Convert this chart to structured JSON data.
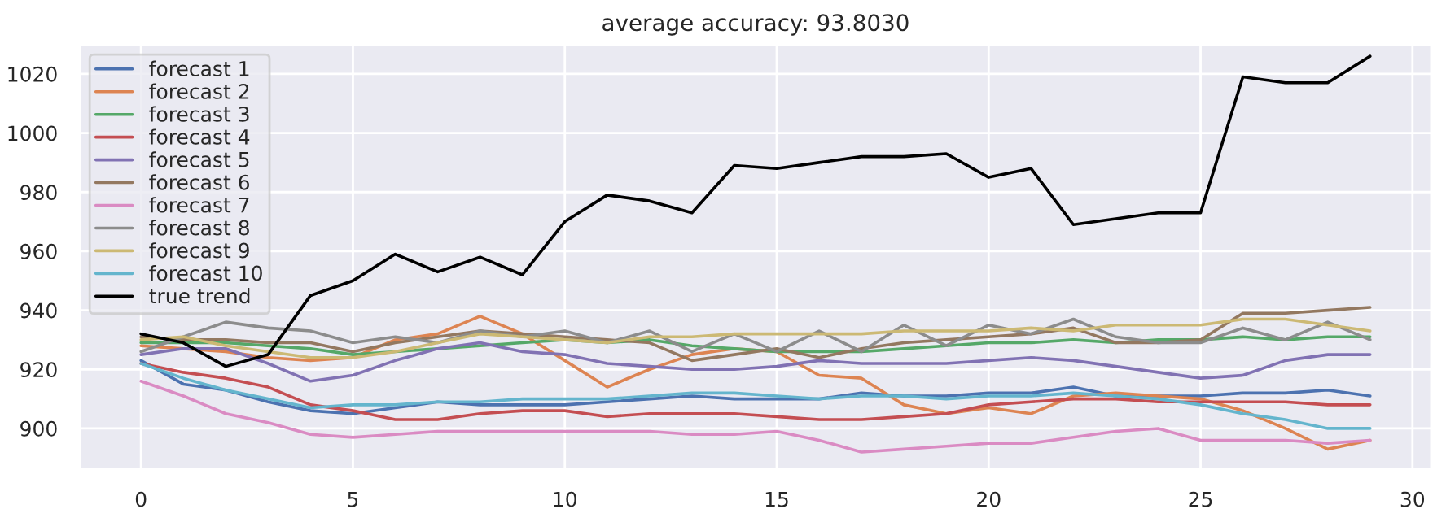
{
  "chart_data": {
    "type": "line",
    "title": "average accuracy: 93.8030",
    "x": [
      0,
      1,
      2,
      3,
      4,
      5,
      6,
      7,
      8,
      9,
      10,
      11,
      12,
      13,
      14,
      15,
      16,
      17,
      18,
      19,
      20,
      21,
      22,
      23,
      24,
      25,
      26,
      27,
      28,
      29
    ],
    "series": [
      {
        "name": "forecast 1",
        "color": "#4c72b0",
        "values": [
          923,
          915,
          913,
          909,
          906,
          905,
          907,
          909,
          908,
          908,
          908,
          909,
          910,
          911,
          910,
          910,
          910,
          912,
          911,
          911,
          912,
          912,
          914,
          911,
          911,
          911,
          912,
          912,
          913,
          911
        ]
      },
      {
        "name": "forecast 2",
        "color": "#dd8452",
        "values": [
          928,
          927,
          926,
          924,
          923,
          924,
          930,
          932,
          938,
          932,
          923,
          914,
          920,
          925,
          927,
          926,
          918,
          917,
          908,
          905,
          907,
          905,
          911,
          912,
          911,
          910,
          906,
          900,
          893,
          896
        ]
      },
      {
        "name": "forecast 3",
        "color": "#55a868",
        "values": [
          929,
          929,
          929,
          928,
          927,
          925,
          926,
          927,
          928,
          929,
          930,
          929,
          930,
          928,
          927,
          926,
          926,
          926,
          927,
          928,
          929,
          929,
          930,
          929,
          930,
          930,
          931,
          930,
          931,
          931
        ]
      },
      {
        "name": "forecast 4",
        "color": "#c44e52",
        "values": [
          922,
          919,
          917,
          914,
          908,
          906,
          903,
          903,
          905,
          906,
          906,
          904,
          905,
          905,
          905,
          904,
          903,
          903,
          904,
          905,
          908,
          909,
          910,
          910,
          909,
          909,
          909,
          909,
          908,
          908
        ]
      },
      {
        "name": "forecast 5",
        "color": "#8172b3",
        "values": [
          925,
          927,
          927,
          922,
          916,
          918,
          923,
          927,
          929,
          926,
          925,
          922,
          921,
          920,
          920,
          921,
          923,
          922,
          922,
          922,
          923,
          924,
          923,
          921,
          919,
          917,
          918,
          923,
          925,
          925
        ]
      },
      {
        "name": "forecast 6",
        "color": "#937860",
        "values": [
          931,
          930,
          930,
          929,
          929,
          926,
          929,
          931,
          933,
          932,
          931,
          930,
          929,
          923,
          925,
          927,
          924,
          927,
          929,
          930,
          931,
          932,
          934,
          929,
          929,
          930,
          939,
          939,
          940,
          941
        ]
      },
      {
        "name": "forecast 7",
        "color": "#da8bc3",
        "values": [
          916,
          911,
          905,
          902,
          898,
          897,
          898,
          899,
          899,
          899,
          899,
          899,
          899,
          898,
          898,
          899,
          896,
          892,
          893,
          894,
          895,
          895,
          897,
          899,
          900,
          896,
          896,
          896,
          895,
          896
        ]
      },
      {
        "name": "forecast 8",
        "color": "#8c8c8c",
        "values": [
          926,
          931,
          936,
          934,
          933,
          929,
          931,
          929,
          933,
          931,
          933,
          929,
          933,
          926,
          932,
          926,
          933,
          926,
          935,
          928,
          935,
          932,
          937,
          931,
          929,
          929,
          934,
          930,
          936,
          930
        ]
      },
      {
        "name": "forecast 9",
        "color": "#ccb974",
        "values": [
          930,
          931,
          928,
          926,
          924,
          924,
          926,
          929,
          932,
          931,
          930,
          929,
          931,
          931,
          932,
          932,
          932,
          932,
          933,
          933,
          933,
          934,
          933,
          935,
          935,
          935,
          937,
          937,
          935,
          933
        ]
      },
      {
        "name": "forecast 10",
        "color": "#64b5cd",
        "values": [
          922,
          917,
          913,
          910,
          907,
          908,
          908,
          909,
          909,
          910,
          910,
          910,
          911,
          912,
          912,
          911,
          910,
          911,
          911,
          910,
          911,
          911,
          912,
          911,
          910,
          908,
          905,
          903,
          900,
          900
        ]
      },
      {
        "name": "true trend",
        "color": "#000000",
        "values": [
          932,
          929,
          921,
          925,
          945,
          950,
          959,
          953,
          958,
          952,
          970,
          979,
          977,
          973,
          989,
          988,
          990,
          992,
          992,
          993,
          985,
          988,
          969,
          971,
          973,
          973,
          1019,
          1017,
          1017,
          1026
        ]
      }
    ],
    "xlim": [
      -1.45,
      30.45
    ],
    "ylim": [
      886,
      1030
    ],
    "xticks": [
      0,
      5,
      10,
      15,
      20,
      25,
      30
    ],
    "yticks": [
      900,
      920,
      940,
      960,
      980,
      1000,
      1020
    ],
    "grid": true,
    "legend": "top left"
  }
}
